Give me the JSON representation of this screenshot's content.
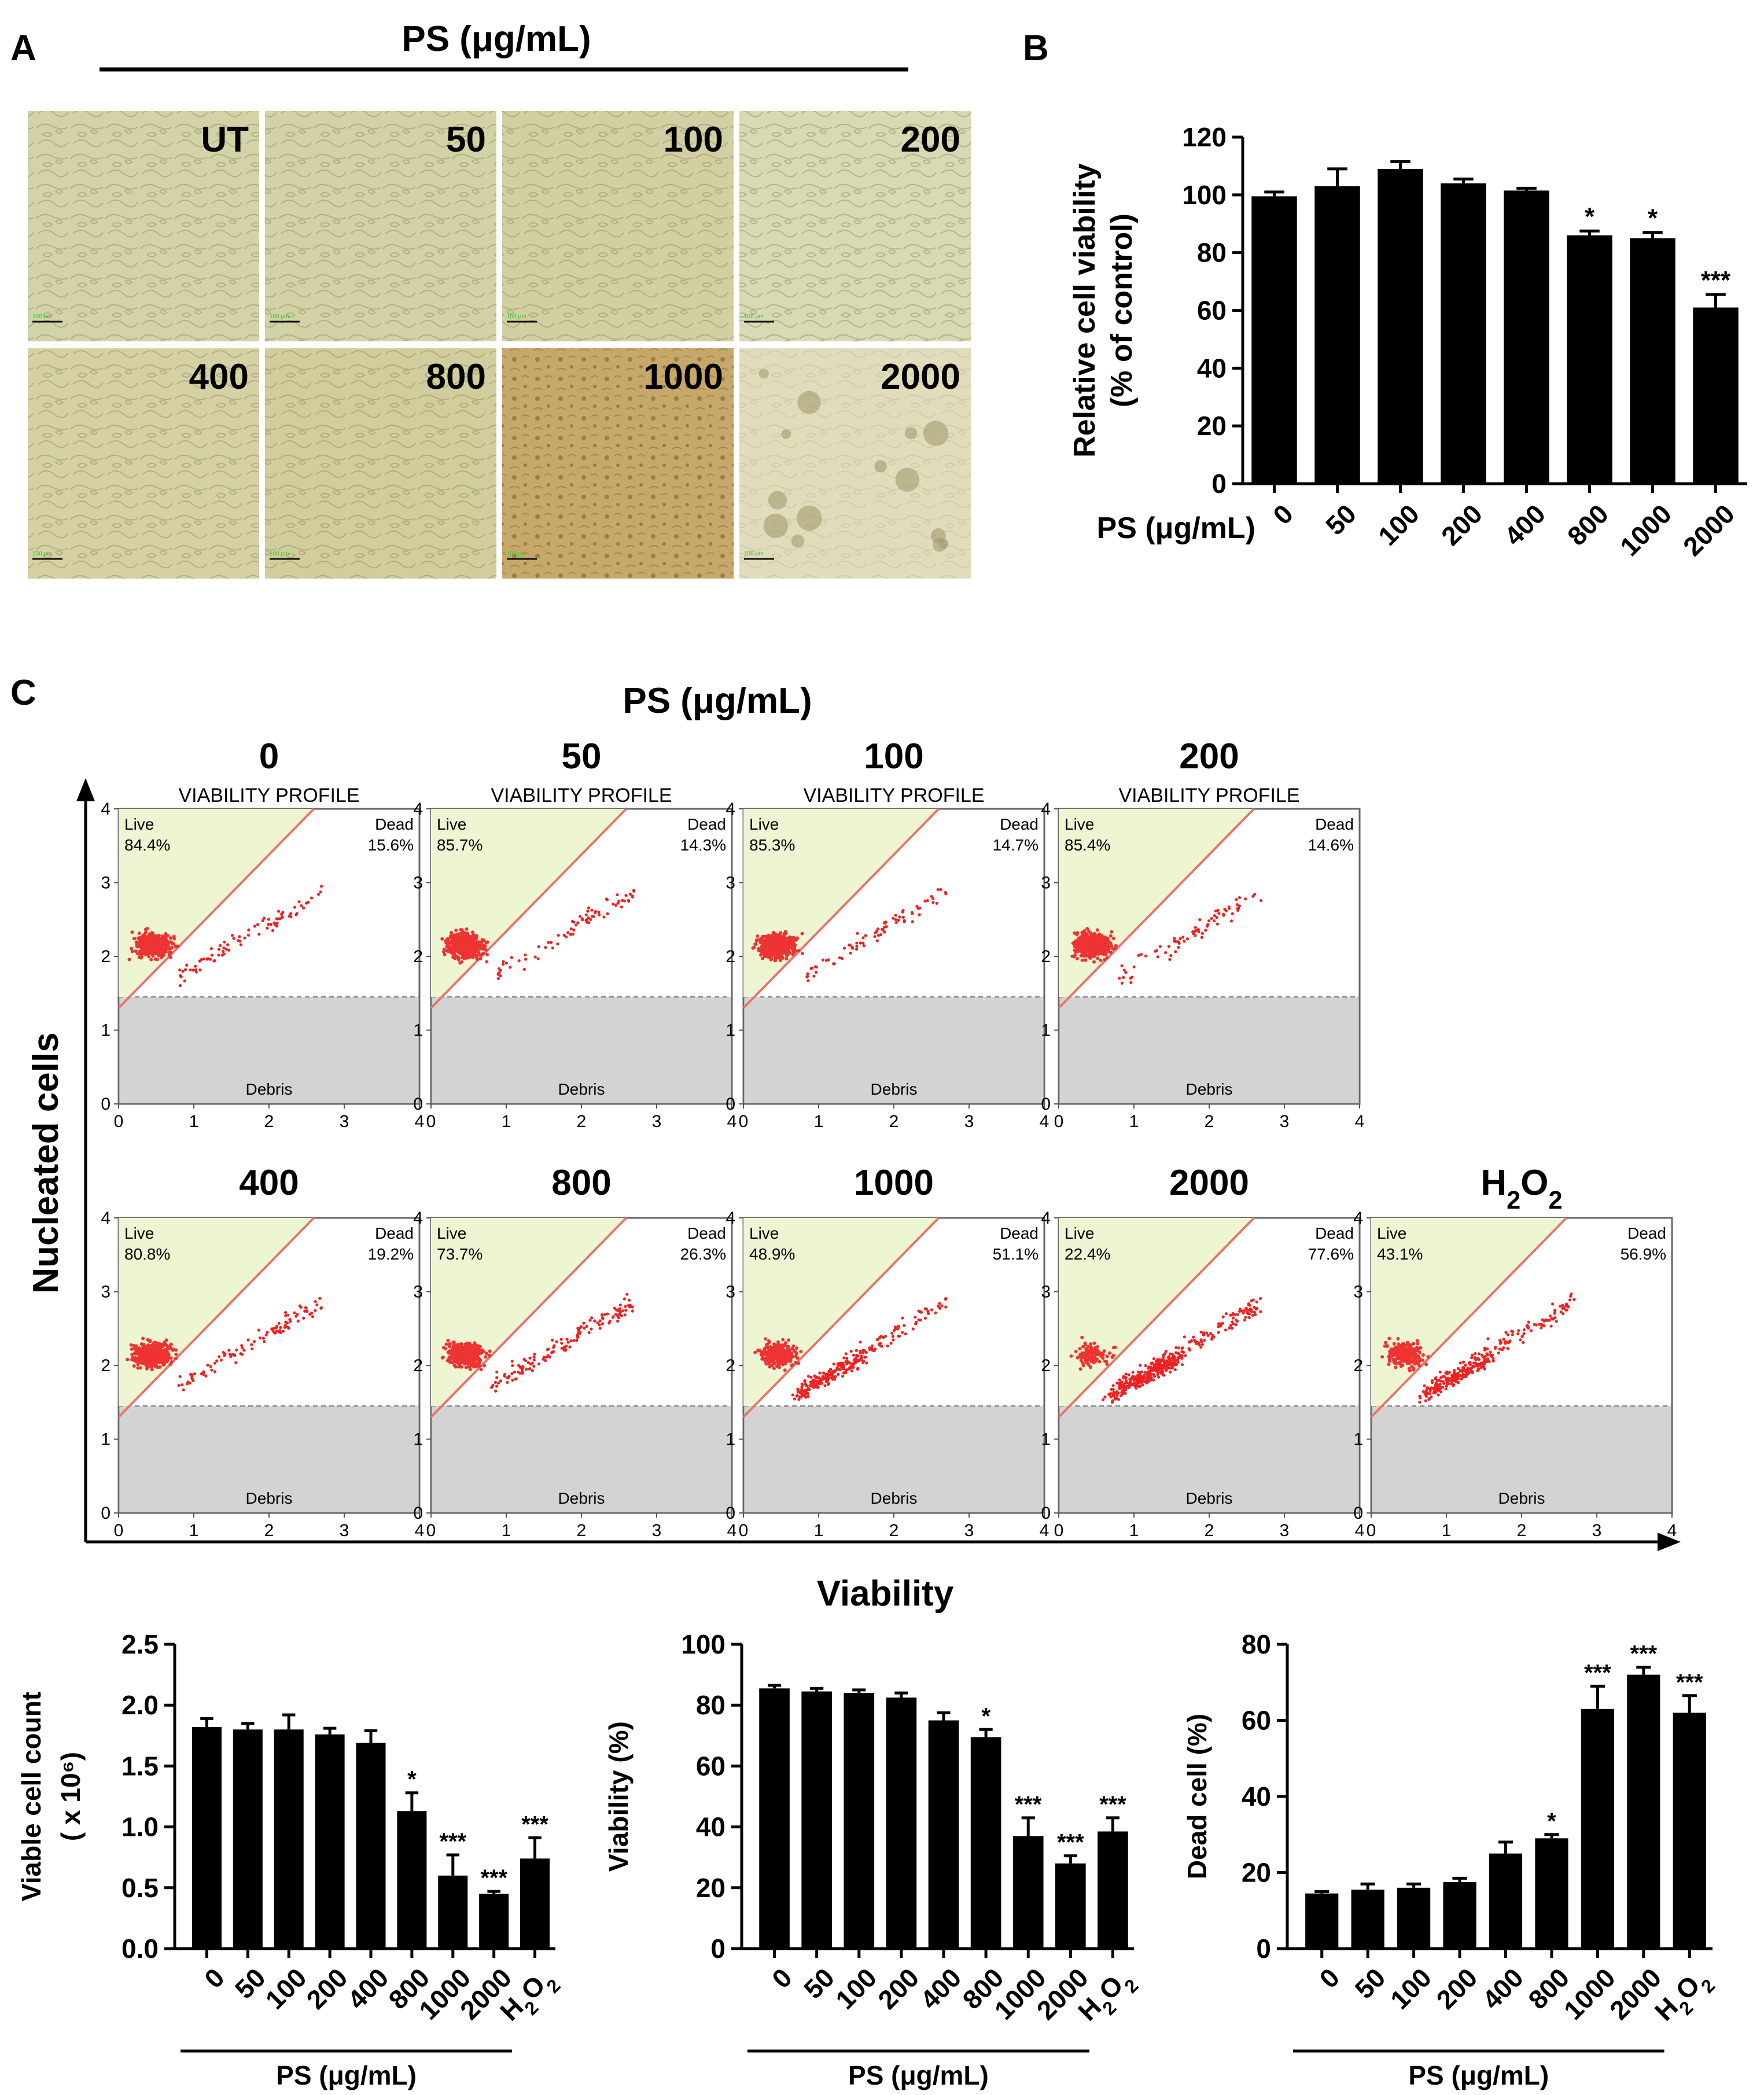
{
  "panel_a": {
    "letter": "A",
    "header": "PS (μg/mL)",
    "image_labels": [
      "UT",
      "50",
      "100",
      "200",
      "400",
      "800",
      "1000",
      "2000"
    ],
    "scale_text": "100 μm"
  },
  "panel_c": {
    "letter": "C",
    "header": "PS (μg/mL)",
    "y_axis_title": "Nucleated cells",
    "x_axis_title": "Viability",
    "plot_title": "VIABILITY PROFILE",
    "live_label": "Live",
    "dead_label": "Dead",
    "debris_label": "Debris",
    "axis_ticks": [
      "0",
      "1",
      "2",
      "3",
      "4"
    ],
    "plots": [
      {
        "label": "0",
        "live": "84.4%",
        "dead": "15.6%",
        "show_title": true
      },
      {
        "label": "50",
        "live": "85.7%",
        "dead": "14.3%",
        "show_title": true
      },
      {
        "label": "100",
        "live": "85.3%",
        "dead": "14.7%",
        "show_title": true
      },
      {
        "label": "200",
        "live": "85.4%",
        "dead": "14.6%",
        "show_title": true
      },
      {
        "label": "400",
        "live": "80.8%",
        "dead": "19.2%",
        "show_title": false
      },
      {
        "label": "800",
        "live": "73.7%",
        "dead": "26.3%",
        "show_title": false
      },
      {
        "label": "1000",
        "live": "48.9%",
        "dead": "51.1%",
        "show_title": false
      },
      {
        "label": "2000",
        "live": "22.4%",
        "dead": "77.6%",
        "show_title": false
      },
      {
        "label": "H2O2",
        "live": "43.1%",
        "dead": "56.9%",
        "show_title": false
      }
    ]
  },
  "chart_data": [
    {
      "id": "B",
      "letter": "B",
      "type": "bar",
      "categories": [
        "0",
        "50",
        "100",
        "200",
        "400",
        "800",
        "1000",
        "2000"
      ],
      "values": [
        99.5,
        103,
        109,
        104,
        101.5,
        86,
        85,
        61
      ],
      "errors": [
        1.5,
        6,
        2.5,
        1.5,
        0.8,
        1.5,
        2.0,
        4.5
      ],
      "significance": [
        "",
        "",
        "",
        "",
        "",
        "*",
        "*",
        "***"
      ],
      "ylabel_lines": [
        "Relative cell viability",
        "(% of control)"
      ],
      "xlabel": "PS (μg/mL)",
      "ylim": [
        0,
        120
      ],
      "yticks": [
        "0",
        "20",
        "40",
        "60",
        "80",
        "100",
        "120"
      ]
    },
    {
      "id": "D1",
      "type": "bar",
      "categories": [
        "0",
        "50",
        "100",
        "200",
        "400",
        "800",
        "1000",
        "2000",
        "H2O2"
      ],
      "values": [
        1.82,
        1.8,
        1.8,
        1.76,
        1.69,
        1.13,
        0.6,
        0.45,
        0.74
      ],
      "errors": [
        0.07,
        0.05,
        0.12,
        0.05,
        0.1,
        0.15,
        0.17,
        0.02,
        0.17
      ],
      "significance": [
        "",
        "",
        "",
        "",
        "",
        "*",
        "***",
        "***",
        "***"
      ],
      "ylabel_lines": [
        "Viable cell count",
        "( x 10⁶)"
      ],
      "xlabel": "PS (μg/mL)",
      "ylim": [
        0,
        2.5
      ],
      "yticks": [
        "0.0",
        "0.5",
        "1.0",
        "1.5",
        "2.0",
        "2.5"
      ]
    },
    {
      "id": "D2",
      "type": "bar",
      "categories": [
        "0",
        "50",
        "100",
        "200",
        "400",
        "800",
        "1000",
        "2000",
        "H2O2"
      ],
      "values": [
        85.5,
        84.5,
        84,
        82.5,
        75,
        69.5,
        37,
        28,
        38.5
      ],
      "errors": [
        1.0,
        1.0,
        1.0,
        1.5,
        2.5,
        2.5,
        6,
        2.5,
        4.5
      ],
      "significance": [
        "",
        "",
        "",
        "",
        "",
        "*",
        "***",
        "***",
        "***"
      ],
      "ylabel_lines": [
        "Viability (%)"
      ],
      "xlabel": "PS (μg/mL)",
      "ylim": [
        0,
        100
      ],
      "yticks": [
        "0",
        "20",
        "40",
        "60",
        "80",
        "100"
      ]
    },
    {
      "id": "D3",
      "type": "bar",
      "categories": [
        "0",
        "50",
        "100",
        "200",
        "400",
        "800",
        "1000",
        "2000",
        "H2O2"
      ],
      "values": [
        14.5,
        15.5,
        16,
        17.5,
        25,
        29,
        63,
        72,
        62
      ],
      "errors": [
        0.5,
        1.5,
        1.0,
        1.0,
        3.0,
        1.0,
        6,
        2.0,
        4.5
      ],
      "significance": [
        "",
        "",
        "",
        "",
        "",
        "*",
        "***",
        "***",
        "***"
      ],
      "ylabel_lines": [
        "Dead cell (%)"
      ],
      "xlabel": "PS (μg/mL)",
      "ylim": [
        0,
        80
      ],
      "yticks": [
        "0",
        "20",
        "40",
        "60",
        "80"
      ]
    }
  ]
}
